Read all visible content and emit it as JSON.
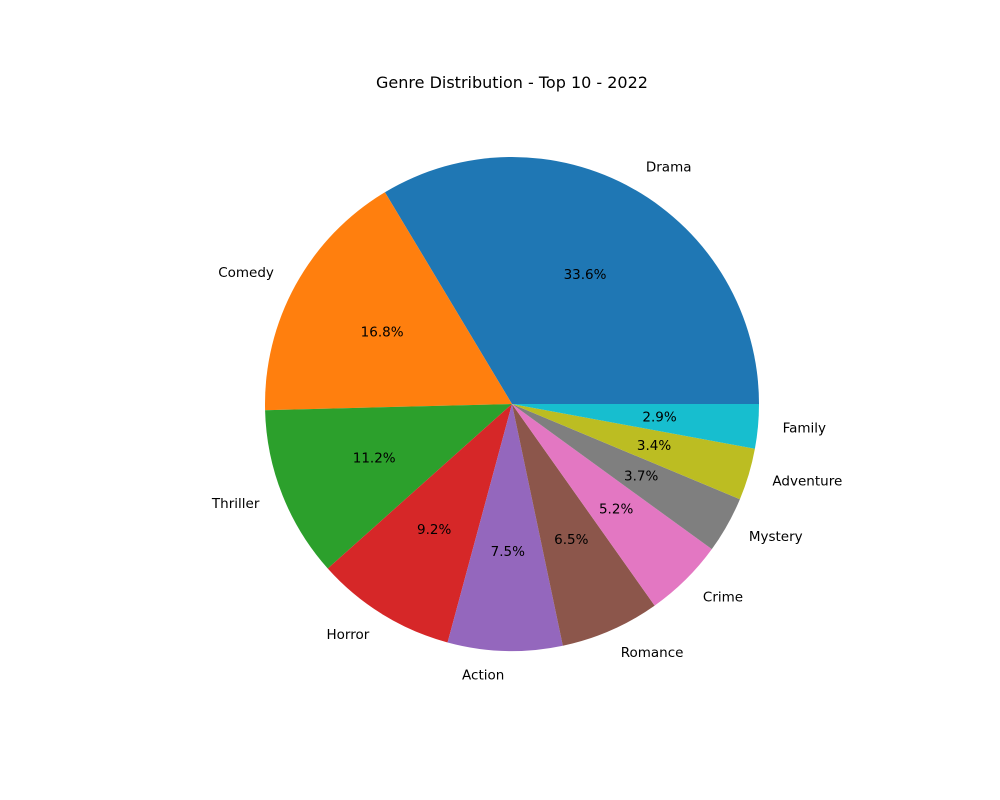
{
  "chart_data": {
    "type": "pie",
    "title": "Genre Distribution - Top 10 - 2022",
    "categories": [
      "Drama",
      "Comedy",
      "Thriller",
      "Horror",
      "Action",
      "Romance",
      "Crime",
      "Mystery",
      "Adventure",
      "Family"
    ],
    "values": [
      33.6,
      16.8,
      11.2,
      9.2,
      7.5,
      6.5,
      5.2,
      3.7,
      3.4,
      2.9
    ],
    "value_labels": [
      "33.6%",
      "16.8%",
      "11.2%",
      "9.2%",
      "7.5%",
      "6.5%",
      "5.2%",
      "3.7%",
      "3.4%",
      "2.9%"
    ],
    "colors": [
      "#1f77b4",
      "#ff7f0e",
      "#2ca02c",
      "#d62728",
      "#9467bd",
      "#8c564b",
      "#e377c2",
      "#7f7f7f",
      "#bcbd22",
      "#17becf"
    ],
    "start_angle_deg": 0,
    "direction": "counterclockwise",
    "legend": "none"
  }
}
